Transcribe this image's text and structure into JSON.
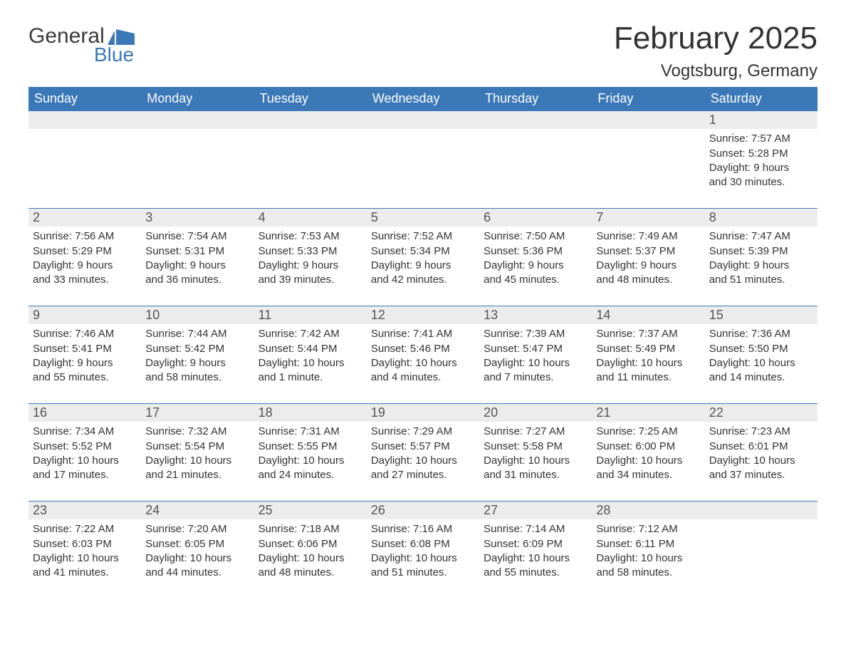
{
  "brand": {
    "word1": "General",
    "word2": "Blue",
    "accent_color": "#3b78b8"
  },
  "title": "February 2025",
  "location": "Vogtsburg, Germany",
  "headers": [
    "Sunday",
    "Monday",
    "Tuesday",
    "Wednesday",
    "Thursday",
    "Friday",
    "Saturday"
  ],
  "colors": {
    "header_bg": "#3b78b8",
    "header_text": "#ffffff",
    "daynum_bg": "#ececec",
    "border": "#3b78b8",
    "body_text": "#333333",
    "background": "#ffffff"
  },
  "fonts": {
    "title_size_pt": 44,
    "header_size_pt": 18,
    "body_size_pt": 15
  },
  "weeks": [
    [
      {},
      {},
      {},
      {},
      {},
      {},
      {
        "n": "1",
        "sunrise": "Sunrise: 7:57 AM",
        "sunset": "Sunset: 5:28 PM",
        "day1": "Daylight: 9 hours",
        "day2": "and 30 minutes."
      }
    ],
    [
      {
        "n": "2",
        "sunrise": "Sunrise: 7:56 AM",
        "sunset": "Sunset: 5:29 PM",
        "day1": "Daylight: 9 hours",
        "day2": "and 33 minutes."
      },
      {
        "n": "3",
        "sunrise": "Sunrise: 7:54 AM",
        "sunset": "Sunset: 5:31 PM",
        "day1": "Daylight: 9 hours",
        "day2": "and 36 minutes."
      },
      {
        "n": "4",
        "sunrise": "Sunrise: 7:53 AM",
        "sunset": "Sunset: 5:33 PM",
        "day1": "Daylight: 9 hours",
        "day2": "and 39 minutes."
      },
      {
        "n": "5",
        "sunrise": "Sunrise: 7:52 AM",
        "sunset": "Sunset: 5:34 PM",
        "day1": "Daylight: 9 hours",
        "day2": "and 42 minutes."
      },
      {
        "n": "6",
        "sunrise": "Sunrise: 7:50 AM",
        "sunset": "Sunset: 5:36 PM",
        "day1": "Daylight: 9 hours",
        "day2": "and 45 minutes."
      },
      {
        "n": "7",
        "sunrise": "Sunrise: 7:49 AM",
        "sunset": "Sunset: 5:37 PM",
        "day1": "Daylight: 9 hours",
        "day2": "and 48 minutes."
      },
      {
        "n": "8",
        "sunrise": "Sunrise: 7:47 AM",
        "sunset": "Sunset: 5:39 PM",
        "day1": "Daylight: 9 hours",
        "day2": "and 51 minutes."
      }
    ],
    [
      {
        "n": "9",
        "sunrise": "Sunrise: 7:46 AM",
        "sunset": "Sunset: 5:41 PM",
        "day1": "Daylight: 9 hours",
        "day2": "and 55 minutes."
      },
      {
        "n": "10",
        "sunrise": "Sunrise: 7:44 AM",
        "sunset": "Sunset: 5:42 PM",
        "day1": "Daylight: 9 hours",
        "day2": "and 58 minutes."
      },
      {
        "n": "11",
        "sunrise": "Sunrise: 7:42 AM",
        "sunset": "Sunset: 5:44 PM",
        "day1": "Daylight: 10 hours",
        "day2": "and 1 minute."
      },
      {
        "n": "12",
        "sunrise": "Sunrise: 7:41 AM",
        "sunset": "Sunset: 5:46 PM",
        "day1": "Daylight: 10 hours",
        "day2": "and 4 minutes."
      },
      {
        "n": "13",
        "sunrise": "Sunrise: 7:39 AM",
        "sunset": "Sunset: 5:47 PM",
        "day1": "Daylight: 10 hours",
        "day2": "and 7 minutes."
      },
      {
        "n": "14",
        "sunrise": "Sunrise: 7:37 AM",
        "sunset": "Sunset: 5:49 PM",
        "day1": "Daylight: 10 hours",
        "day2": "and 11 minutes."
      },
      {
        "n": "15",
        "sunrise": "Sunrise: 7:36 AM",
        "sunset": "Sunset: 5:50 PM",
        "day1": "Daylight: 10 hours",
        "day2": "and 14 minutes."
      }
    ],
    [
      {
        "n": "16",
        "sunrise": "Sunrise: 7:34 AM",
        "sunset": "Sunset: 5:52 PM",
        "day1": "Daylight: 10 hours",
        "day2": "and 17 minutes."
      },
      {
        "n": "17",
        "sunrise": "Sunrise: 7:32 AM",
        "sunset": "Sunset: 5:54 PM",
        "day1": "Daylight: 10 hours",
        "day2": "and 21 minutes."
      },
      {
        "n": "18",
        "sunrise": "Sunrise: 7:31 AM",
        "sunset": "Sunset: 5:55 PM",
        "day1": "Daylight: 10 hours",
        "day2": "and 24 minutes."
      },
      {
        "n": "19",
        "sunrise": "Sunrise: 7:29 AM",
        "sunset": "Sunset: 5:57 PM",
        "day1": "Daylight: 10 hours",
        "day2": "and 27 minutes."
      },
      {
        "n": "20",
        "sunrise": "Sunrise: 7:27 AM",
        "sunset": "Sunset: 5:58 PM",
        "day1": "Daylight: 10 hours",
        "day2": "and 31 minutes."
      },
      {
        "n": "21",
        "sunrise": "Sunrise: 7:25 AM",
        "sunset": "Sunset: 6:00 PM",
        "day1": "Daylight: 10 hours",
        "day2": "and 34 minutes."
      },
      {
        "n": "22",
        "sunrise": "Sunrise: 7:23 AM",
        "sunset": "Sunset: 6:01 PM",
        "day1": "Daylight: 10 hours",
        "day2": "and 37 minutes."
      }
    ],
    [
      {
        "n": "23",
        "sunrise": "Sunrise: 7:22 AM",
        "sunset": "Sunset: 6:03 PM",
        "day1": "Daylight: 10 hours",
        "day2": "and 41 minutes."
      },
      {
        "n": "24",
        "sunrise": "Sunrise: 7:20 AM",
        "sunset": "Sunset: 6:05 PM",
        "day1": "Daylight: 10 hours",
        "day2": "and 44 minutes."
      },
      {
        "n": "25",
        "sunrise": "Sunrise: 7:18 AM",
        "sunset": "Sunset: 6:06 PM",
        "day1": "Daylight: 10 hours",
        "day2": "and 48 minutes."
      },
      {
        "n": "26",
        "sunrise": "Sunrise: 7:16 AM",
        "sunset": "Sunset: 6:08 PM",
        "day1": "Daylight: 10 hours",
        "day2": "and 51 minutes."
      },
      {
        "n": "27",
        "sunrise": "Sunrise: 7:14 AM",
        "sunset": "Sunset: 6:09 PM",
        "day1": "Daylight: 10 hours",
        "day2": "and 55 minutes."
      },
      {
        "n": "28",
        "sunrise": "Sunrise: 7:12 AM",
        "sunset": "Sunset: 6:11 PM",
        "day1": "Daylight: 10 hours",
        "day2": "and 58 minutes."
      },
      {}
    ]
  ]
}
